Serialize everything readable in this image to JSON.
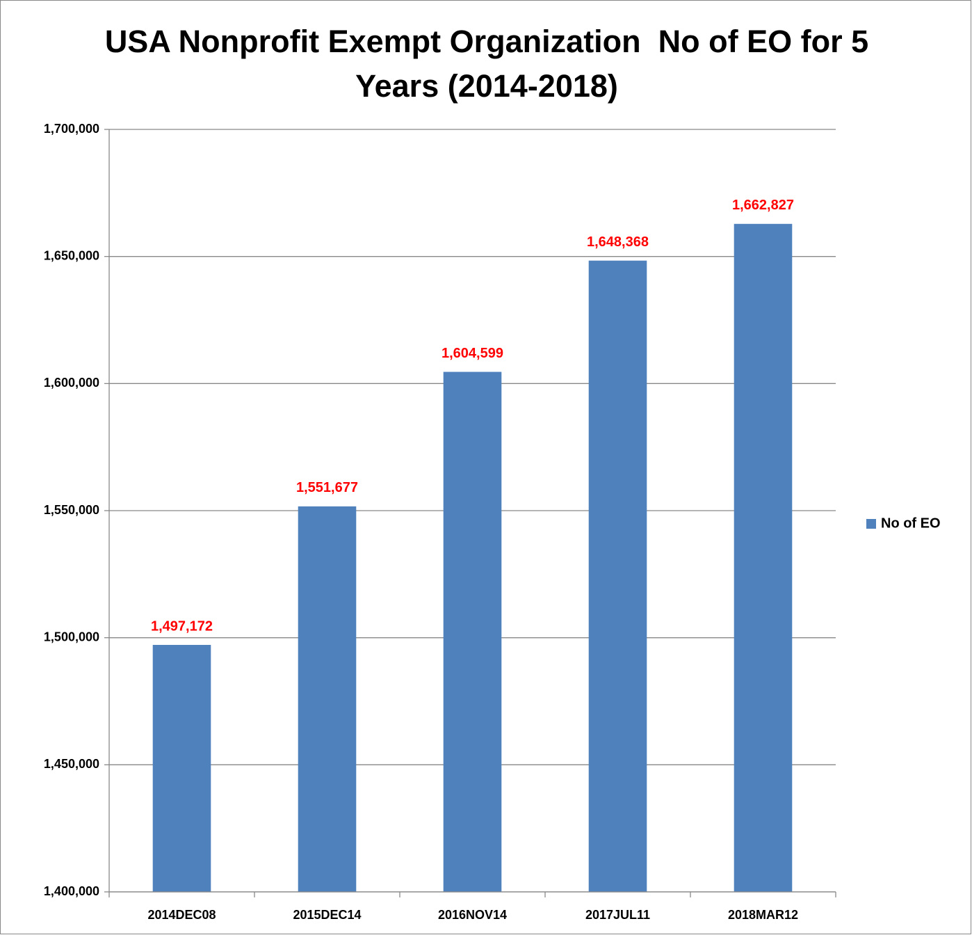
{
  "chart_data": {
    "type": "bar",
    "title": "USA Nonprofit Exempt Organization  No of EO for 5 Years (2014-2018)",
    "categories": [
      "2014DEC08",
      "2015DEC14",
      "2016NOV14",
      "2017JUL11",
      "2018MAR12"
    ],
    "series": [
      {
        "name": "No of EO",
        "color": "#4f81bd",
        "values": [
          1497172,
          1551677,
          1604599,
          1648368,
          1662827
        ],
        "value_labels": [
          "1,497,172",
          "1,551,677",
          "1,604,599",
          "1,648,368",
          "1,662,827"
        ]
      }
    ],
    "value_label_color": "#ff0000",
    "ylim": [
      1400000,
      1700000
    ],
    "yticks": [
      {
        "value": 1400000,
        "label": "1,400,000"
      },
      {
        "value": 1450000,
        "label": "1,450,000"
      },
      {
        "value": 1500000,
        "label": "1,500,000"
      },
      {
        "value": 1550000,
        "label": "1,550,000"
      },
      {
        "value": 1600000,
        "label": "1,600,000"
      },
      {
        "value": 1650000,
        "label": "1,650,000"
      },
      {
        "value": 1700000,
        "label": "1,700,000"
      }
    ],
    "grid": true,
    "legend": "right"
  }
}
